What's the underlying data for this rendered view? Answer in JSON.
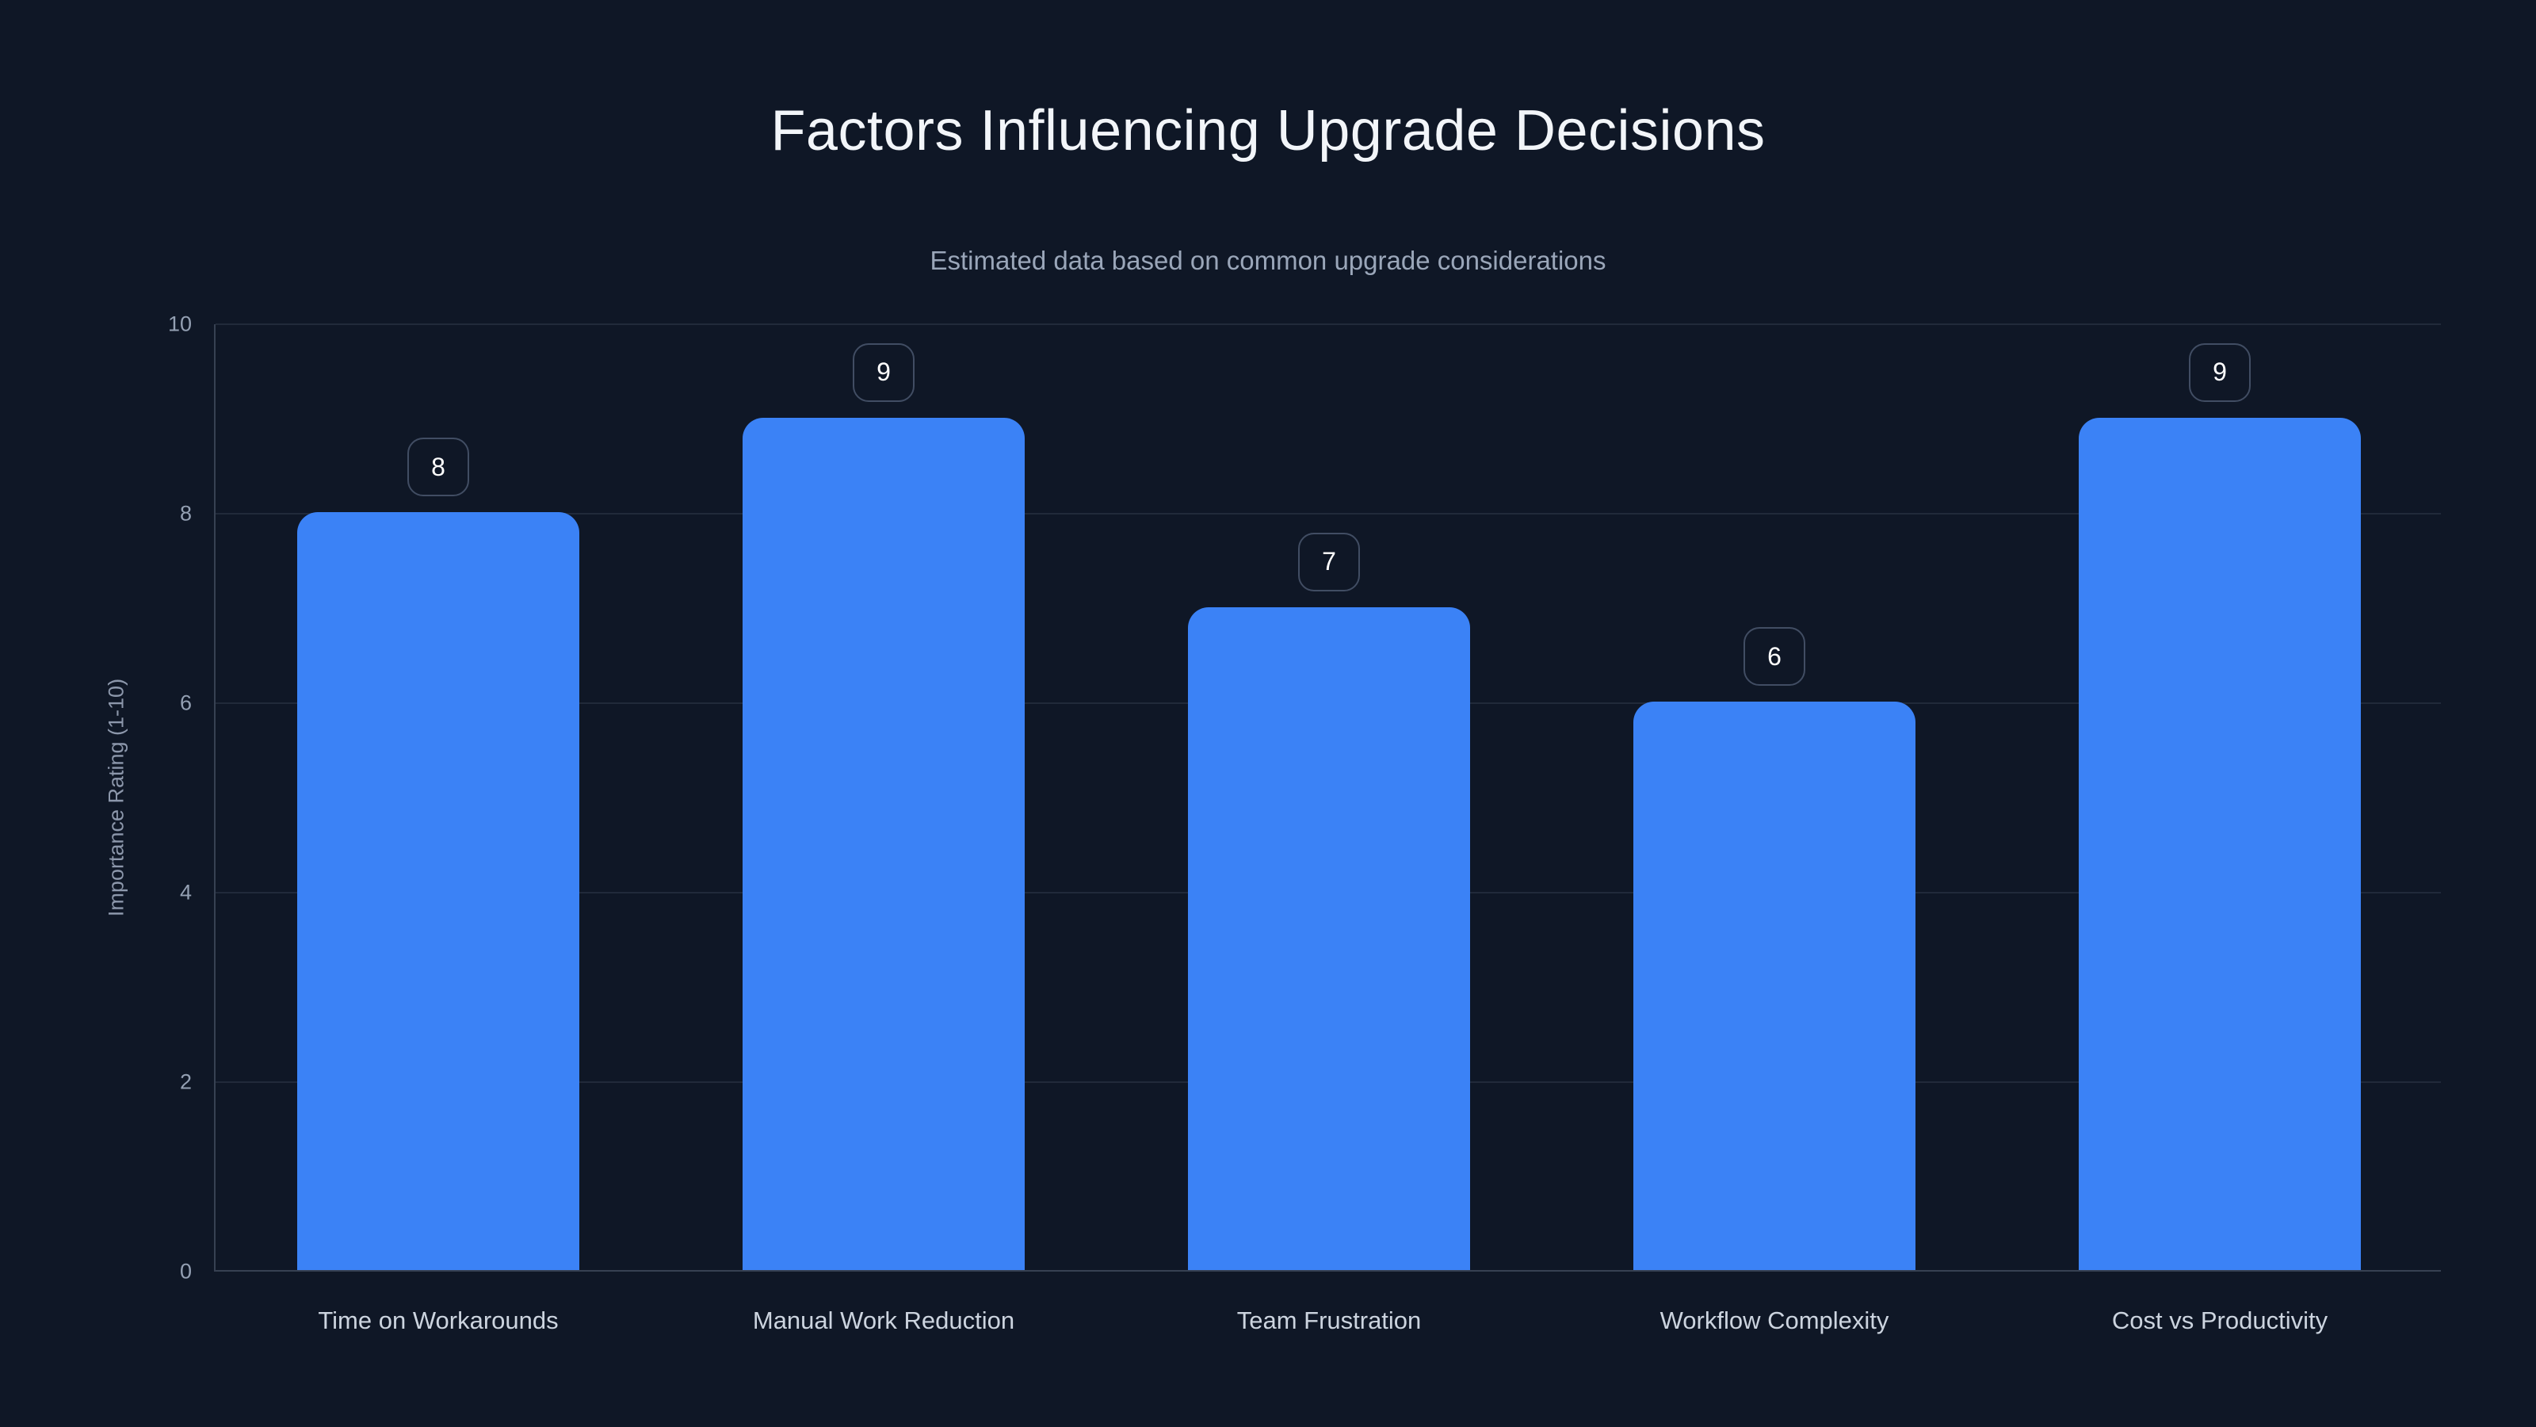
{
  "header": {
    "title": "Factors Influencing Upgrade Decisions",
    "subtitle": "Estimated data based on common upgrade considerations"
  },
  "colors": {
    "background": "#0f1726",
    "bar": "#3b82f6",
    "title_text": "#f2f5f9",
    "subtitle_text": "#9aa6b9",
    "axis_tick_text": "#94a0b3",
    "category_text": "#ccd4df",
    "badge_border": "#414d63",
    "badge_text": "#ffffff",
    "gridline": "rgba(148,163,184,0.14)"
  },
  "chart_data": {
    "type": "bar",
    "title": "Factors Influencing Upgrade Decisions",
    "subtitle": "Estimated data based on common upgrade considerations",
    "categories": [
      "Time on Workarounds",
      "Manual Work Reduction",
      "Team Frustration",
      "Workflow Complexity",
      "Cost vs Productivity"
    ],
    "values": [
      8,
      9,
      7,
      6,
      9
    ],
    "value_labels": [
      "8",
      "9",
      "7",
      "6",
      "9"
    ],
    "xlabel": "",
    "ylabel": "Importance Rating (1-10)",
    "ylim": [
      0,
      10
    ],
    "yticks": [
      0,
      2,
      4,
      6,
      8,
      10
    ],
    "grid": true,
    "legend_position": "none",
    "bar_color": "#3b82f6"
  }
}
